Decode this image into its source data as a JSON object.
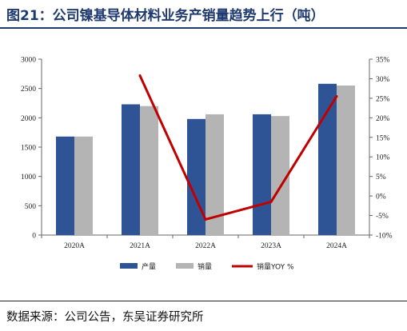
{
  "title": "图21：公司镍基导体材料业务产销量趋势上行（吨）",
  "source": "数据来源：公司公告，东吴证券研究所",
  "chart_data": {
    "type": "bar",
    "categories": [
      "2020A",
      "2021A",
      "2022A",
      "2023A",
      "2024A"
    ],
    "series": [
      {
        "name": "产量",
        "kind": "bar",
        "axis": "left",
        "color": "#2f5496",
        "values": [
          1680,
          2230,
          1980,
          2060,
          2580
        ]
      },
      {
        "name": "销量",
        "kind": "bar",
        "axis": "left",
        "color": "#b4b4b4",
        "values": [
          1680,
          2200,
          2060,
          2030,
          2550
        ]
      },
      {
        "name": "销量YOY %",
        "kind": "line",
        "axis": "right",
        "color": "#c00000",
        "values": [
          null,
          30.8,
          -6.0,
          -1.5,
          25.5
        ]
      }
    ],
    "ylim_left": [
      0,
      3000
    ],
    "yticks_left": [
      "0",
      "500",
      "1000",
      "1500",
      "2000",
      "2500",
      "3000"
    ],
    "ylim_right": [
      -10,
      35
    ],
    "yticks_right": [
      "-10%",
      "-5%",
      "0%",
      "5%",
      "10%",
      "15%",
      "20%",
      "25%",
      "30%",
      "35%"
    ],
    "grid": false,
    "legend_position": "bottom"
  }
}
